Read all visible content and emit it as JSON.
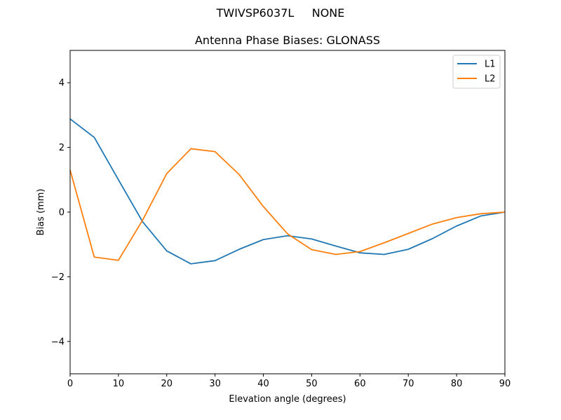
{
  "suptitle": "TWIVSP6037L     NONE",
  "chart_data": {
    "type": "line",
    "title": "Antenna Phase Biases: GLONASS",
    "xlabel": "Elevation angle (degrees)",
    "ylabel": "Bias (mm)",
    "xlim": [
      0,
      90
    ],
    "ylim": [
      -5,
      5
    ],
    "xticks": [
      0,
      10,
      20,
      30,
      40,
      50,
      60,
      70,
      80,
      90
    ],
    "yticks": [
      -4,
      -2,
      0,
      2,
      4
    ],
    "ytick_labels": [
      "−4",
      "−2",
      "0",
      "2",
      "4"
    ],
    "grid": false,
    "legend_position": "top-right",
    "x": [
      0,
      5,
      10,
      15,
      20,
      25,
      30,
      35,
      40,
      45,
      50,
      55,
      60,
      65,
      70,
      75,
      80,
      85,
      90
    ],
    "series": [
      {
        "name": "L1",
        "color": "#1f77b4",
        "values": [
          2.88,
          2.31,
          1.0,
          -0.3,
          -1.2,
          -1.6,
          -1.5,
          -1.15,
          -0.85,
          -0.73,
          -0.83,
          -1.05,
          -1.26,
          -1.31,
          -1.15,
          -0.82,
          -0.43,
          -0.12,
          0.0
        ]
      },
      {
        "name": "L2",
        "color": "#ff7f0e",
        "values": [
          1.3,
          -1.39,
          -1.49,
          -0.25,
          1.19,
          1.96,
          1.87,
          1.16,
          0.17,
          -0.67,
          -1.16,
          -1.31,
          -1.22,
          -0.95,
          -0.66,
          -0.37,
          -0.17,
          -0.05,
          0.0
        ]
      }
    ]
  }
}
